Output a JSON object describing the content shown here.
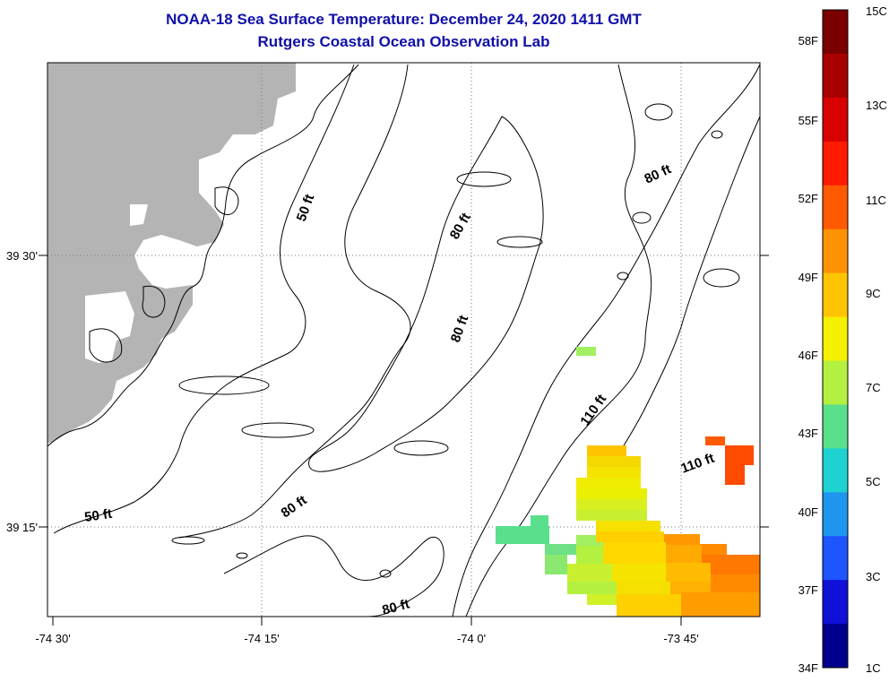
{
  "title": "NOAA-18 Sea Surface Temperature:  December 24, 2020 1411 GMT",
  "subtitle": "Rutgers Coastal Ocean Observation Lab",
  "map": {
    "lon_labels": [
      "-74 30'",
      "-74 15'",
      "-74 0'",
      "-73 45'"
    ],
    "lat_labels": [
      "39 30'",
      "39 15'"
    ],
    "contour_labels": [
      "50 ft",
      "50 ft",
      "80 ft",
      "80 ft",
      "80 ft",
      "80 ft",
      "110 ft",
      "110 ft",
      "80 ft"
    ],
    "land_color": "#b4b4b4",
    "contour_color": "#000000"
  },
  "colorbar": {
    "celsius_labels": [
      "15C",
      "13C",
      "11C",
      "9C",
      "7C",
      "5C",
      "3C",
      "1C"
    ],
    "fahrenheit_labels": [
      "58F",
      "55F",
      "52F",
      "49F",
      "46F",
      "43F",
      "40F",
      "37F",
      "34F"
    ],
    "colors": [
      "#7a0000",
      "#a80000",
      "#d80000",
      "#ff1a00",
      "#ff5a00",
      "#ff9200",
      "#ffc400",
      "#f5f000",
      "#b4f040",
      "#5ae08c",
      "#1ed2d2",
      "#1e96f0",
      "#1e55ff",
      "#1010d8",
      "#00008c"
    ]
  }
}
